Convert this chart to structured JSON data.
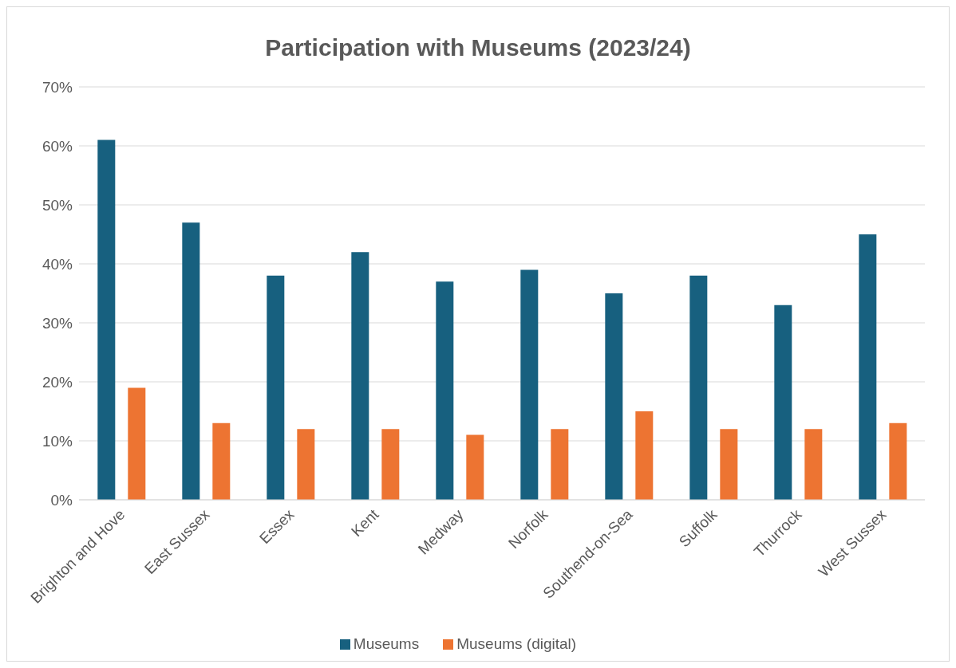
{
  "chart_data": {
    "type": "bar",
    "title": "Participation with Museums (2023/24)",
    "categories": [
      "Brighton and Hove",
      "East Sussex",
      "Essex",
      "Kent",
      "Medway",
      "Norfolk",
      "Southend-on-Sea",
      "Suffolk",
      "Thurrock",
      "West Sussex"
    ],
    "series": [
      {
        "name": "Museums",
        "color": "#17607f",
        "values": [
          61,
          47,
          38,
          42,
          37,
          39,
          35,
          38,
          33,
          45
        ]
      },
      {
        "name": "Museums (digital)",
        "color": "#ed7432",
        "values": [
          19,
          13,
          12,
          12,
          11,
          12,
          15,
          12,
          12,
          13
        ]
      }
    ],
    "ylim": [
      0,
      70
    ],
    "yticks": [
      {
        "value": 0,
        "label": "0%"
      },
      {
        "value": 10,
        "label": "10%"
      },
      {
        "value": 20,
        "label": "20%"
      },
      {
        "value": 30,
        "label": "30%"
      },
      {
        "value": 40,
        "label": "40%"
      },
      {
        "value": 50,
        "label": "50%"
      },
      {
        "value": 60,
        "label": "60%"
      },
      {
        "value": 70,
        "label": "70%"
      }
    ],
    "grid": "y",
    "legend": "bottom"
  }
}
